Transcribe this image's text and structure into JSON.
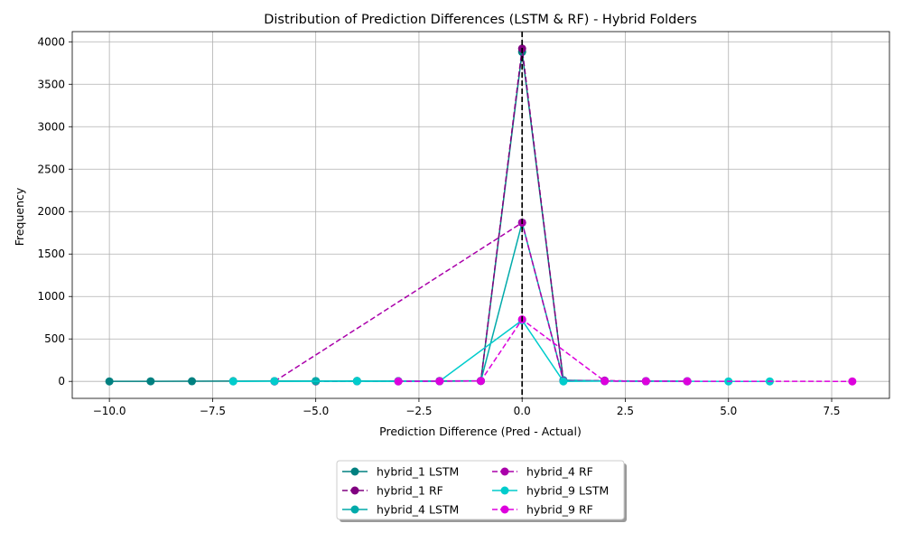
{
  "chart_data": {
    "type": "line",
    "title": "Distribution of Prediction Differences (LSTM & RF) - Hybrid Folders",
    "xlabel": "Prediction Difference (Pred - Actual)",
    "ylabel": "Frequency",
    "xlim": [
      -10.9,
      8.9
    ],
    "ylim": [
      -200,
      4120
    ],
    "xticks": [
      -10.0,
      -7.5,
      -5.0,
      -2.5,
      0.0,
      2.5,
      5.0,
      7.5
    ],
    "xtick_labels": [
      "−10.0",
      "−7.5",
      "−5.0",
      "−2.5",
      "0.0",
      "2.5",
      "5.0",
      "7.5"
    ],
    "yticks": [
      0,
      500,
      1000,
      1500,
      2000,
      2500,
      3000,
      3500,
      4000
    ],
    "ytick_labels": [
      "0",
      "500",
      "1000",
      "1500",
      "2000",
      "2500",
      "3000",
      "3500",
      "4000"
    ],
    "grid": true,
    "vline": {
      "x": 0,
      "color": "#000000",
      "style": "dashed"
    },
    "legend_position": "bottom-center",
    "legend_columns": 2,
    "series": [
      {
        "name": "hybrid_1 LSTM",
        "color": "#008080",
        "dashed": false,
        "x": [
          -10,
          -9,
          -8,
          -7,
          -6,
          -5,
          -4,
          -3,
          -2,
          -1,
          0,
          1,
          2,
          3,
          4
        ],
        "y": [
          0,
          1,
          2,
          3,
          4,
          4,
          3,
          3,
          5,
          6,
          3880,
          10,
          5,
          3,
          2
        ]
      },
      {
        "name": "hybrid_1 RF",
        "color": "#800080",
        "dashed": true,
        "x": [
          -5,
          -4,
          -3,
          -2,
          -1,
          0,
          1,
          2,
          3,
          4
        ],
        "y": [
          0,
          2,
          3,
          4,
          5,
          3920,
          8,
          4,
          2,
          1
        ]
      },
      {
        "name": "hybrid_4 LSTM",
        "color": "#00AAAA",
        "dashed": false,
        "x": [
          -6,
          -5,
          -4,
          -3,
          -2,
          -1,
          0,
          1,
          2,
          3
        ],
        "y": [
          0,
          3,
          6,
          2,
          1,
          5,
          1870,
          15,
          4,
          2
        ]
      },
      {
        "name": "hybrid_4 RF",
        "color": "#AA00AA",
        "dashed": true,
        "x": [
          -6,
          0,
          1,
          2,
          3
        ],
        "y": [
          0,
          1870,
          8,
          10,
          3
        ]
      },
      {
        "name": "hybrid_9 LSTM",
        "color": "#00CCCC",
        "dashed": false,
        "x": [
          -7,
          -6,
          -4,
          -3,
          -2,
          0,
          1,
          2,
          3,
          4,
          5,
          6
        ],
        "y": [
          0,
          2,
          1,
          1,
          2,
          720,
          0,
          3,
          2,
          1,
          0,
          0
        ]
      },
      {
        "name": "hybrid_9 RF",
        "color": "#DD00DD",
        "dashed": true,
        "x": [
          -3,
          -2,
          -1,
          0,
          2,
          3,
          4,
          8
        ],
        "y": [
          0,
          2,
          5,
          730,
          3,
          2,
          1,
          0
        ]
      }
    ]
  }
}
